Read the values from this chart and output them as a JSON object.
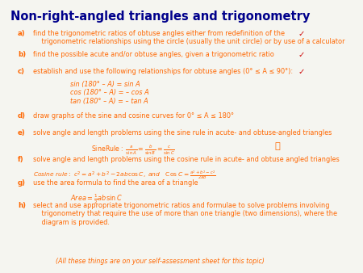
{
  "title": "Non-right-angled triangles and trigonometry",
  "title_color": "#00008B",
  "background_color": "#f5f5f0",
  "text_color": "#FF6600",
  "body_color": "#FF6600",
  "items": [
    {
      "label": "a)",
      "text": "find the trigonometric ratios of obtuse angles either from redefinition of the\n    trigonometric relationships using the circle (usually the unit circle) or by use of a calculator",
      "check": true
    },
    {
      "label": "b)",
      "text": "find the possible acute and/or obtuse angles, given a trigonometric ratio",
      "check": true
    },
    {
      "label": "c)",
      "text": "establish and use the following relationships for obtuse angles (0° ≤ A ≤ 90°):",
      "check": true,
      "sublines": [
        "sin (180° – A) = sin A",
        "cos (180° – A) = – cos A",
        "tan (180° – A) = – tan A"
      ]
    },
    {
      "label": "d)",
      "text": "draw graphs of the sine and cosine curves for 0° ≤ A ≤ 180°",
      "check": false
    },
    {
      "label": "e)",
      "text": "solve angle and length problems using the sine rule in acute- and obtuse-angled triangles",
      "check": false,
      "formula_sine": true,
      "hand": true
    },
    {
      "label": "f)",
      "text": "solve angle and length problems using the cosine rule in acute- and obtuse angled triangles",
      "check": false,
      "formula_cosine": true
    },
    {
      "label": "g)",
      "text": "use the area formula to find the area of a triangle",
      "check": false,
      "formula_area": true
    },
    {
      "label": "h)",
      "text": "select and use appropriate trigonometric ratios and formulae to solve problems involving\n    trigonometry that require the use of more than one triangle (two dimensions), where the\n    diagram is provided.",
      "check": false
    }
  ],
  "footer": "(All these things are on your self-assessment sheet for this topic)",
  "footer_color": "#FF6600"
}
